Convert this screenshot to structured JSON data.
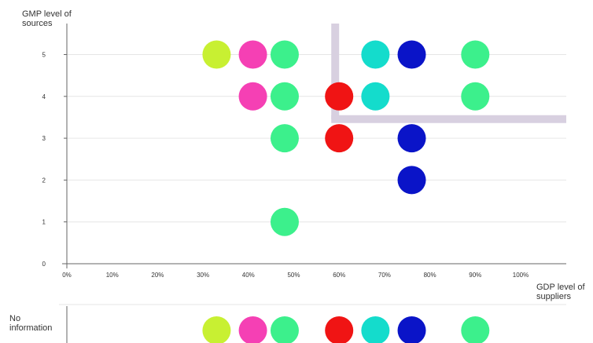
{
  "chart_data": {
    "type": "scatter",
    "ylabel": "GMP level of\nsources",
    "xlabel": "GDP level of\nsuppliers",
    "no_info_label": "No\ninformation",
    "x_ticks": [
      "0%",
      "10%",
      "20%",
      "30%",
      "40%",
      "50%",
      "60%",
      "70%",
      "80%",
      "90%",
      "100%"
    ],
    "y_ticks": [
      "0",
      "1",
      "2",
      "3",
      "4",
      "5"
    ],
    "xlim": [
      0,
      110
    ],
    "ylim": [
      0,
      5.5
    ],
    "grid": true,
    "threshold": {
      "x": 60,
      "y": 3.4,
      "color": "#d8d0e0"
    },
    "points": [
      {
        "x": 33,
        "y": 5,
        "color": "#c8f032"
      },
      {
        "x": 41,
        "y": 5,
        "color": "#f540b4"
      },
      {
        "x": 48,
        "y": 5,
        "color": "#3cf08c"
      },
      {
        "x": 68,
        "y": 5,
        "color": "#14dccc"
      },
      {
        "x": 76,
        "y": 5,
        "color": "#0a14c8"
      },
      {
        "x": 90,
        "y": 5,
        "color": "#3cf08c"
      },
      {
        "x": 41,
        "y": 4,
        "color": "#f540b4"
      },
      {
        "x": 48,
        "y": 4,
        "color": "#3cf08c"
      },
      {
        "x": 60,
        "y": 4,
        "color": "#f01414"
      },
      {
        "x": 68,
        "y": 4,
        "color": "#14dccc"
      },
      {
        "x": 90,
        "y": 4,
        "color": "#3cf08c"
      },
      {
        "x": 48,
        "y": 3,
        "color": "#3cf08c"
      },
      {
        "x": 60,
        "y": 3,
        "color": "#f01414"
      },
      {
        "x": 76,
        "y": 3,
        "color": "#0a14c8"
      },
      {
        "x": 76,
        "y": 2,
        "color": "#0a14c8"
      },
      {
        "x": 48,
        "y": 1,
        "color": "#3cf08c"
      }
    ],
    "no_info_points": [
      {
        "x": 33,
        "color": "#c8f032"
      },
      {
        "x": 41,
        "color": "#f540b4"
      },
      {
        "x": 48,
        "color": "#3cf08c"
      },
      {
        "x": 60,
        "color": "#f01414"
      },
      {
        "x": 68,
        "color": "#14dccc"
      },
      {
        "x": 76,
        "color": "#0a14c8"
      },
      {
        "x": 90,
        "color": "#3cf08c"
      }
    ]
  }
}
